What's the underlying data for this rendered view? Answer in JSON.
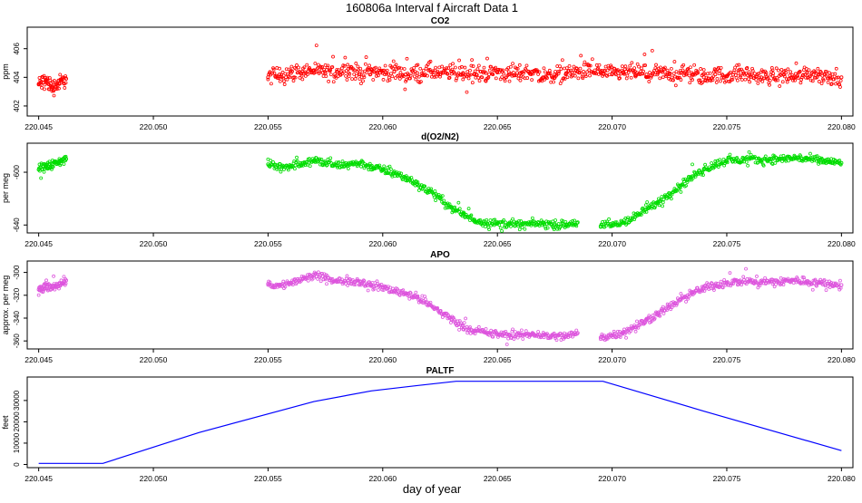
{
  "figure": {
    "title": "160806a   Interval f Aircraft Data 1",
    "xlabel": "day of year"
  },
  "chart_data": [
    {
      "type": "scatter",
      "title": "CO2",
      "ylabel": "ppm",
      "xlim": [
        220.0445,
        220.0805
      ],
      "ylim": [
        401.3,
        407.5
      ],
      "x_ticks": [
        "220.045",
        "220.050",
        "220.055",
        "220.060",
        "220.065",
        "220.070",
        "220.075",
        "220.080"
      ],
      "y_ticks": [
        "402",
        "404",
        "406"
      ],
      "color": "#ff0000",
      "series": [
        {
          "x": [
            220.045,
            220.0453,
            220.0456,
            220.0459,
            220.0462,
            220.055,
            220.0555,
            220.056,
            220.0565,
            220.057,
            220.0575,
            220.058,
            220.0585,
            220.059,
            220.0595,
            220.06,
            220.0605,
            220.061,
            220.0615,
            220.062,
            220.0625,
            220.063,
            220.0635,
            220.064,
            220.0645,
            220.065,
            220.0655,
            220.066,
            220.0665,
            220.067,
            220.0675,
            220.068,
            220.0685,
            220.069,
            220.0695,
            220.07,
            220.0705,
            220.071,
            220.0715,
            220.072,
            220.0725,
            220.073,
            220.0735,
            220.074,
            220.0745,
            220.075,
            220.0755,
            220.076,
            220.0765,
            220.077,
            220.0775,
            220.078,
            220.0785,
            220.079,
            220.0795,
            220.08
          ],
          "y": [
            403.5,
            403.8,
            403.3,
            403.6,
            403.9,
            404.0,
            404.2,
            404.3,
            404.4,
            404.5,
            404.3,
            404.4,
            404.6,
            404.2,
            404.5,
            404.3,
            404.4,
            404.2,
            404.3,
            404.5,
            404.2,
            404.4,
            404.3,
            404.2,
            404.3,
            404.4,
            404.2,
            404.3,
            404.4,
            404.0,
            404.2,
            404.3,
            404.4,
            404.5,
            404.4,
            404.2,
            404.3,
            404.4,
            404.2,
            404.3,
            404.2,
            404.3,
            404.2,
            404.0,
            404.2,
            404.1,
            404.3,
            404.2,
            404.0,
            404.1,
            404.2,
            404.0,
            404.3,
            404.2,
            404.1,
            404.0
          ]
        }
      ]
    },
    {
      "type": "scatter",
      "title": "d(O2/N2)",
      "ylabel": "per meg",
      "xlim": [
        220.0445,
        220.0805
      ],
      "ylim": [
        -646,
        -578
      ],
      "x_ticks": [
        "220.045",
        "220.050",
        "220.055",
        "220.060",
        "220.065",
        "220.070",
        "220.075",
        "220.080"
      ],
      "y_ticks": [
        "-640",
        "-600"
      ],
      "color": "#00dd00",
      "series": [
        {
          "x": [
            220.045,
            220.0453,
            220.0456,
            220.0459,
            220.0462,
            220.055,
            220.0555,
            220.056,
            220.0565,
            220.057,
            220.0575,
            220.058,
            220.0585,
            220.059,
            220.0595,
            220.06,
            220.0605,
            220.061,
            220.0615,
            220.062,
            220.0625,
            220.063,
            220.0635,
            220.064,
            220.0645,
            220.065,
            220.0655,
            220.066,
            220.0665,
            220.067,
            220.0675,
            220.068,
            220.0685,
            220.0695,
            220.07,
            220.0705,
            220.071,
            220.0715,
            220.072,
            220.0725,
            220.073,
            220.0735,
            220.074,
            220.0745,
            220.075,
            220.0755,
            220.076,
            220.0765,
            220.077,
            220.0775,
            220.078,
            220.0785,
            220.079,
            220.0795,
            220.08
          ],
          "y": [
            -598,
            -596,
            -594,
            -592,
            -590,
            -594,
            -596,
            -595,
            -593,
            -591,
            -593,
            -595,
            -594,
            -593,
            -596,
            -598,
            -601,
            -604,
            -609,
            -614,
            -620,
            -627,
            -632,
            -636,
            -638,
            -639,
            -639,
            -640,
            -639,
            -639,
            -640,
            -640,
            -638,
            -641,
            -640,
            -638,
            -634,
            -628,
            -623,
            -616,
            -610,
            -603,
            -598,
            -594,
            -591,
            -591,
            -590,
            -591,
            -590,
            -590,
            -589,
            -590,
            -591,
            -592,
            -593
          ]
        }
      ]
    },
    {
      "type": "scatter",
      "title": "APO",
      "ylabel": "approx. per meg",
      "xlim": [
        220.0445,
        220.0805
      ],
      "ylim": [
        -367,
        -290
      ],
      "x_ticks": [
        "220.045",
        "220.050",
        "220.055",
        "220.060",
        "220.065",
        "220.070",
        "220.075",
        "220.080"
      ],
      "y_ticks": [
        "-360",
        "-340",
        "-320",
        "-300"
      ],
      "color": "#dd55dd",
      "series": [
        {
          "x": [
            220.045,
            220.0453,
            220.0456,
            220.0459,
            220.0462,
            220.055,
            220.0555,
            220.056,
            220.0565,
            220.057,
            220.0575,
            220.058,
            220.0585,
            220.059,
            220.0595,
            220.06,
            220.0605,
            220.061,
            220.0615,
            220.062,
            220.0625,
            220.063,
            220.0635,
            220.064,
            220.0645,
            220.065,
            220.0655,
            220.066,
            220.0665,
            220.067,
            220.0675,
            220.068,
            220.0685,
            220.0695,
            220.07,
            220.0705,
            220.071,
            220.0715,
            220.072,
            220.0725,
            220.073,
            220.0735,
            220.074,
            220.0745,
            220.075,
            220.0755,
            220.076,
            220.0765,
            220.077,
            220.0775,
            220.078,
            220.0785,
            220.079,
            220.0795,
            220.08
          ],
          "y": [
            -315,
            -314,
            -312,
            -310,
            -307,
            -310,
            -312,
            -309,
            -306,
            -303,
            -305,
            -308,
            -307,
            -308,
            -311,
            -313,
            -316,
            -318,
            -322,
            -328,
            -334,
            -341,
            -347,
            -351,
            -353,
            -354,
            -355,
            -355,
            -354,
            -355,
            -356,
            -356,
            -353,
            -357,
            -355,
            -352,
            -348,
            -342,
            -336,
            -330,
            -324,
            -318,
            -314,
            -311,
            -309,
            -308,
            -307,
            -309,
            -308,
            -308,
            -307,
            -308,
            -309,
            -310,
            -311
          ]
        }
      ]
    },
    {
      "type": "line",
      "title": "PALTF",
      "ylabel": "feet",
      "xlim": [
        220.0445,
        220.0805
      ],
      "ylim": [
        -1500,
        41000
      ],
      "x_ticks": [
        "220.045",
        "220.050",
        "220.055",
        "220.060",
        "220.065",
        "220.070",
        "220.075",
        "220.080"
      ],
      "y_ticks": [
        "0",
        "10000",
        "20000",
        "30000"
      ],
      "color": "#0000ff",
      "series": [
        {
          "x": [
            220.045,
            220.0478,
            220.052,
            220.057,
            220.0595,
            220.0615,
            220.0632,
            220.0696,
            220.074,
            220.08
          ],
          "y": [
            500,
            500,
            15000,
            29500,
            34500,
            37000,
            39000,
            39000,
            25000,
            6500
          ]
        }
      ]
    }
  ]
}
